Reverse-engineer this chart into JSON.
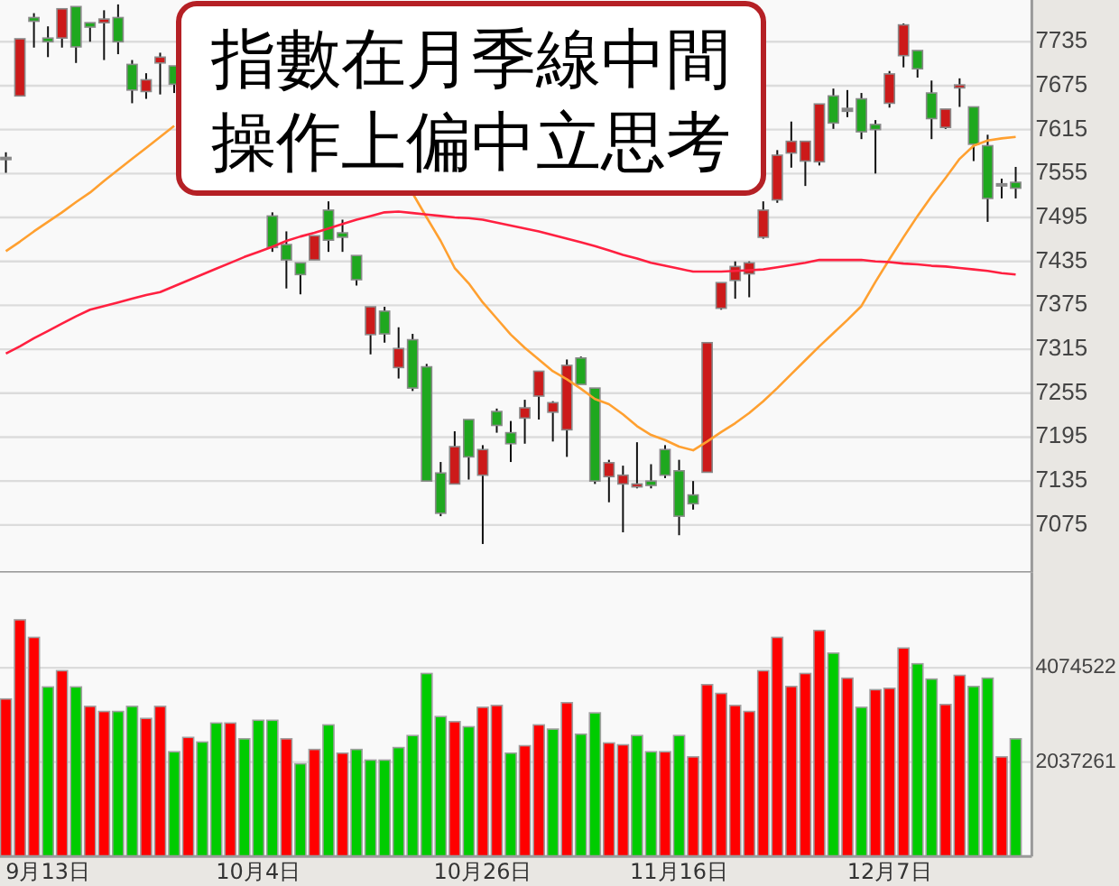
{
  "chart_data": [
    {
      "type": "candlestick",
      "categories": [
        null,
        null,
        null,
        null,
        null,
        null,
        null,
        null,
        null,
        null,
        null,
        null,
        null,
        null,
        null,
        null,
        null,
        null,
        null,
        null,
        null,
        null,
        null,
        null,
        null,
        null,
        null,
        null,
        null,
        null,
        null,
        null,
        null,
        null,
        null,
        null,
        null,
        null,
        null,
        null,
        null,
        null,
        null,
        null,
        null,
        null,
        null,
        null,
        null,
        null,
        null,
        null,
        null,
        null,
        null,
        null,
        null,
        null,
        null,
        null,
        null,
        null,
        null,
        null,
        null,
        null,
        null,
        null,
        null,
        null,
        null,
        null,
        null
      ],
      "ohlc": [
        [
          7577,
          7584,
          7556,
          7577
        ],
        [
          7661,
          7739,
          7661,
          7739
        ],
        [
          7768,
          7774,
          7727,
          7763
        ],
        [
          7740,
          7756,
          7714,
          7735
        ],
        [
          7740,
          7780,
          7727,
          7780
        ],
        [
          7783,
          7783,
          7706,
          7728
        ],
        [
          7761,
          7761,
          7735,
          7755
        ],
        [
          7761,
          7778,
          7710,
          7766
        ],
        [
          7768,
          7786,
          7718,
          7735
        ],
        [
          7704,
          7710,
          7651,
          7669
        ],
        [
          7667,
          7692,
          7657,
          7683
        ],
        [
          7706,
          7720,
          7663,
          7714
        ],
        [
          7702,
          7702,
          7665,
          7677
        ],
        null,
        null,
        null,
        null,
        null,
        null,
        [
          7497,
          7502,
          7448,
          7454
        ],
        [
          7458,
          7476,
          7398,
          7437
        ],
        [
          7433,
          7433,
          7390,
          7417
        ],
        [
          7437,
          7470,
          7437,
          7470
        ],
        [
          7505,
          7517,
          7448,
          7464
        ],
        [
          7474,
          7492,
          7448,
          7468
        ],
        [
          7443,
          7443,
          7402,
          7410
        ],
        [
          7335,
          7373,
          7308,
          7373
        ],
        [
          7367,
          7373,
          7324,
          7336
        ],
        [
          7290,
          7345,
          7275,
          7316
        ],
        [
          7328,
          7336,
          7258,
          7262
        ],
        [
          7291,
          7295,
          7135,
          7135
        ],
        [
          7146,
          7161,
          7087,
          7091
        ],
        [
          7131,
          7203,
          7131,
          7182
        ],
        [
          7219,
          7219,
          7137,
          7168
        ],
        [
          7143,
          7184,
          7049,
          7178
        ],
        [
          7230,
          7234,
          7201,
          7211
        ],
        [
          7201,
          7217,
          7161,
          7186
        ],
        [
          7221,
          7246,
          7186,
          7235
        ],
        [
          7251,
          7285,
          7219,
          7285
        ],
        [
          7229,
          7244,
          7189,
          7242
        ],
        [
          7205,
          7301,
          7168,
          7293
        ],
        [
          7303,
          7305,
          7267,
          7267
        ],
        [
          7262,
          7262,
          7131,
          7135
        ],
        [
          7141,
          7164,
          7106,
          7160
        ],
        [
          7131,
          7156,
          7065,
          7143
        ],
        [
          7127,
          7188,
          7125,
          7131
        ],
        [
          7135,
          7158,
          7125,
          7129
        ],
        [
          7178,
          7184,
          7139,
          7143
        ],
        [
          7149,
          7164,
          7061,
          7087
        ],
        [
          7116,
          7135,
          7096,
          7104
        ],
        [
          7147,
          7324,
          7147,
          7324
        ],
        [
          7371,
          7406,
          7369,
          7406
        ],
        [
          7409,
          7435,
          7384,
          7428
        ],
        [
          7418,
          7435,
          7386,
          7433
        ],
        [
          7468,
          7517,
          7466,
          7505
        ],
        [
          7519,
          7587,
          7515,
          7580
        ],
        [
          7583,
          7626,
          7563,
          7599
        ],
        [
          7572,
          7599,
          7538,
          7599
        ],
        [
          7571,
          7650,
          7566,
          7650
        ],
        [
          7661,
          7671,
          7616,
          7624
        ],
        [
          7644,
          7669,
          7632,
          7640
        ],
        [
          7657,
          7665,
          7602,
          7612
        ],
        [
          7622,
          7628,
          7555,
          7615
        ],
        [
          7651,
          7695,
          7645,
          7691
        ],
        [
          7716,
          7760,
          7700,
          7758
        ],
        [
          7723,
          7723,
          7686,
          7698
        ],
        [
          7665,
          7682,
          7602,
          7630
        ],
        [
          7618,
          7643,
          7616,
          7643
        ],
        [
          7672,
          7685,
          7646,
          7676
        ],
        [
          7646,
          7646,
          7572,
          7595
        ],
        [
          7593,
          7608,
          7489,
          7521
        ],
        [
          7541,
          7548,
          7521,
          7541
        ],
        [
          7543,
          7564,
          7521,
          7535
        ]
      ],
      "colors": [
        "#888888",
        "#cc1a1a",
        "#1fa81f",
        "#1fa81f",
        "#cc1a1a",
        "#1fa81f",
        "#1fa81f",
        "#cc1a1a",
        "#1fa81f",
        "#1fa81f",
        "#cc1a1a",
        "#cc1a1a",
        "#1fa81f",
        null,
        null,
        null,
        null,
        null,
        null,
        "#1fa81f",
        "#1fa81f",
        "#1fa81f",
        "#cc1a1a",
        "#1fa81f",
        "#1fa81f",
        "#1fa81f",
        "#cc1a1a",
        "#1fa81f",
        "#cc1a1a",
        "#1fa81f",
        "#1fa81f",
        "#1fa81f",
        "#cc1a1a",
        "#1fa81f",
        "#cc1a1a",
        "#1fa81f",
        "#1fa81f",
        "#cc1a1a",
        "#cc1a1a",
        "#cc1a1a",
        "#cc1a1a",
        "#1fa81f",
        "#1fa81f",
        "#cc1a1a",
        "#cc1a1a",
        "#cc1a1a",
        "#1fa81f",
        "#1fa81f",
        "#1fa81f",
        "#1fa81f",
        "#cc1a1a",
        "#cc1a1a",
        "#cc1a1a",
        "#cc1a1a",
        "#cc1a1a",
        "#cc1a1a",
        "#cc1a1a",
        "#cc1a1a",
        "#cc1a1a",
        "#1fa81f",
        "#888888",
        "#1fa81f",
        "#1fa81f",
        "#cc1a1a",
        "#cc1a1a",
        "#1fa81f",
        "#1fa81f",
        "#cc1a1a",
        "#cc1a1a",
        "#1fa81f",
        "#1fa81f",
        "#888888",
        "#1fa81f"
      ],
      "series": [
        {
          "type": "line",
          "color": "#ffa030",
          "values": [
            7449,
            7462,
            7476,
            7489,
            7502,
            7516,
            7529,
            7545,
            7560,
            7575,
            7590,
            7605,
            7620,
            null,
            null,
            null,
            null,
            null,
            null,
            null,
            null,
            null,
            null,
            null,
            null,
            null,
            null,
            null,
            null,
            7528,
            7495,
            7463,
            7426,
            7405,
            7379,
            7357,
            7335,
            7317,
            7301,
            7285,
            7274,
            7261,
            7247,
            7240,
            7226,
            7210,
            7198,
            7191,
            7182,
            7177,
            7189,
            7202,
            7214,
            7228,
            7244,
            7262,
            7281,
            7300,
            7319,
            7337,
            7355,
            7374,
            7407,
            7438,
            7468,
            7497,
            7524,
            7549,
            7575,
            7593,
            7600,
            7603,
            7605
          ]
        },
        {
          "type": "line",
          "color": "#ff2040",
          "values": [
            7309,
            7319,
            7330,
            7340,
            7350,
            7360,
            7369,
            7374,
            7379,
            7384,
            7389,
            7393,
            7401,
            7409,
            7417,
            7425,
            7433,
            7441,
            7448,
            7455,
            7463,
            7469,
            7474,
            7480,
            7486,
            7492,
            7497,
            7502,
            7503,
            7501,
            7499,
            7497,
            7495,
            7494,
            7492,
            7488,
            7484,
            7480,
            7476,
            7471,
            7466,
            7461,
            7456,
            7450,
            7444,
            7439,
            7433,
            7429,
            7425,
            7421,
            7421,
            7421,
            7422,
            7423,
            7424,
            7427,
            7430,
            7433,
            7437,
            7437,
            7437,
            7437,
            7435,
            7434,
            7432,
            7431,
            7429,
            7428,
            7426,
            7424,
            7422,
            7419,
            7417
          ]
        }
      ],
      "ylim": [
        7010,
        7792
      ],
      "yticks": [
        7075,
        7135,
        7195,
        7255,
        7315,
        7375,
        7435,
        7495,
        7555,
        7615,
        7675,
        7735
      ],
      "grid": "y",
      "tick_labels": "y",
      "annotations": [
        "指數在月季線中間",
        "操作上偏中立思考"
      ]
    },
    {
      "type": "bar",
      "categories": [
        null,
        null,
        null,
        "9月13日",
        null,
        null,
        null,
        null,
        null,
        null,
        null,
        null,
        null,
        null,
        null,
        null,
        null,
        null,
        "10月4日",
        null,
        null,
        null,
        null,
        null,
        null,
        null,
        null,
        null,
        null,
        null,
        null,
        null,
        null,
        null,
        "10月26日",
        null,
        null,
        null,
        null,
        null,
        null,
        null,
        null,
        null,
        null,
        null,
        null,
        null,
        "11月16日",
        null,
        null,
        null,
        null,
        null,
        null,
        null,
        null,
        null,
        null,
        null,
        null,
        null,
        null,
        "12月7日",
        null,
        null,
        null,
        null,
        null,
        null,
        null,
        null,
        null
      ],
      "values": [
        3400000,
        5110000,
        4730000,
        3660000,
        4010000,
        3660000,
        3240000,
        3130000,
        3130000,
        3240000,
        2980000,
        3240000,
        2260000,
        2570000,
        2470000,
        2880000,
        2880000,
        2540000,
        2940000,
        2940000,
        2540000,
        2000000,
        2310000,
        2840000,
        2230000,
        2310000,
        2080000,
        2080000,
        2350000,
        2610000,
        3950000,
        3020000,
        2910000,
        2800000,
        3220000,
        3260000,
        2230000,
        2390000,
        2840000,
        2750000,
        3320000,
        2640000,
        3100000,
        2450000,
        2410000,
        2610000,
        2260000,
        2260000,
        2610000,
        2150000,
        3710000,
        3520000,
        3260000,
        3130000,
        4010000,
        4730000,
        3670000,
        3950000,
        4880000,
        4390000,
        3850000,
        3220000,
        3600000,
        3630000,
        4500000,
        4160000,
        3830000,
        3280000,
        3910000,
        3670000,
        3850000,
        2150000,
        2540000
      ],
      "colors": [
        "#ff0000",
        "#ff0000",
        "#ff0000",
        "#00cc00",
        "#ff0000",
        "#00cc00",
        "#ff0000",
        "#ff0000",
        "#00cc00",
        "#00cc00",
        "#ff0000",
        "#ff0000",
        "#00cc00",
        "#ff0000",
        "#00cc00",
        "#00cc00",
        "#ff0000",
        "#00cc00",
        "#00cc00",
        "#00cc00",
        "#ff0000",
        "#00cc00",
        "#ff0000",
        "#00cc00",
        "#ff0000",
        "#00cc00",
        "#00cc00",
        "#00cc00",
        "#00cc00",
        "#00cc00",
        "#00cc00",
        "#00cc00",
        "#ff0000",
        "#00cc00",
        "#ff0000",
        "#ff0000",
        "#00cc00",
        "#ff0000",
        "#ff0000",
        "#00cc00",
        "#ff0000",
        "#00cc00",
        "#00cc00",
        "#ff0000",
        "#ff0000",
        "#00cc00",
        "#00cc00",
        "#ff0000",
        "#00cc00",
        "#ff0000",
        "#ff0000",
        "#ff0000",
        "#ff0000",
        "#ff0000",
        "#ff0000",
        "#ff0000",
        "#ff0000",
        "#ff0000",
        "#ff0000",
        "#00cc00",
        "#ff0000",
        "#00cc00",
        "#ff0000",
        "#ff0000",
        "#ff0000",
        "#00cc00",
        "#00cc00",
        "#ff0000",
        "#ff0000",
        "#00cc00",
        "#00cc00",
        "#ff0000",
        "#00cc00"
      ],
      "ylim": [
        0,
        6130000
      ],
      "yticks": [
        2037261,
        4074522
      ],
      "grid": "y"
    }
  ]
}
